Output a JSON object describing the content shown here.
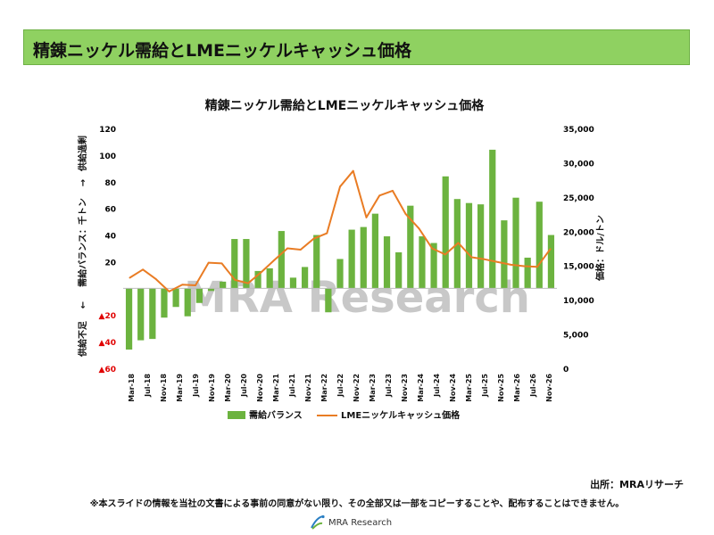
{
  "header": {
    "title": "精錬ニッケル需給とLMEニッケルキャッシュ価格"
  },
  "chart_data": {
    "type": "bar+line",
    "title": "精錬ニッケル需給とLMEニッケルキャッシュ価格",
    "y_left": {
      "range": [
        -60,
        120
      ],
      "ticks": [
        {
          "value": 120,
          "label": "120",
          "color": "#000000"
        },
        {
          "value": 100,
          "label": "100",
          "color": "#000000"
        },
        {
          "value": 80,
          "label": "80",
          "color": "#000000"
        },
        {
          "value": 60,
          "label": "60",
          "color": "#000000"
        },
        {
          "value": 40,
          "label": "40",
          "color": "#000000"
        },
        {
          "value": 20,
          "label": "20",
          "color": "#000000"
        },
        {
          "value": -20,
          "label": "▲20",
          "color": "#e00000"
        },
        {
          "value": -40,
          "label": "▲40",
          "color": "#e00000"
        },
        {
          "value": -60,
          "label": "▲60",
          "color": "#e00000"
        }
      ],
      "label_top": "供給過剰",
      "label_mid": "需給バランス：千トン",
      "label_bottom": "供給不足",
      "arrow_up": "→",
      "arrow_down": "←"
    },
    "y_right": {
      "range": [
        0,
        35000
      ],
      "ticks": [
        {
          "value": 35000,
          "label": "35,000"
        },
        {
          "value": 30000,
          "label": "30,000"
        },
        {
          "value": 25000,
          "label": "25,000"
        },
        {
          "value": 20000,
          "label": "20,000"
        },
        {
          "value": 15000,
          "label": "15,000"
        },
        {
          "value": 10000,
          "label": "10,000"
        },
        {
          "value": 5000,
          "label": "5,000"
        },
        {
          "value": 0,
          "label": "0"
        }
      ],
      "label": "価格：ドル/トン"
    },
    "x_labels": [
      "Mar-18",
      "Jul-18",
      "Nov-18",
      "Mar-19",
      "Jul-19",
      "Nov-19",
      "Mar-20",
      "Jul-20",
      "Nov-20",
      "Mar-21",
      "Jul-21",
      "Nov-21",
      "Mar-22",
      "Jul-22",
      "Nov-22",
      "Mar-23",
      "Jul-23",
      "Nov-23",
      "Mar-24",
      "Jul-24",
      "Nov-24",
      "Mar-25",
      "Jul-25",
      "Nov-25",
      "Mar-26",
      "Jul-26",
      "Nov-26"
    ],
    "series": [
      {
        "name": "需給バランス",
        "type": "bar",
        "color": "#6cb33f",
        "values": [
          -46,
          -39,
          -38,
          -22,
          -14,
          -21,
          -11,
          -2,
          5,
          37,
          37,
          13,
          15,
          43,
          8,
          16,
          40,
          -18,
          22,
          44,
          46,
          56,
          39,
          27,
          62,
          39,
          34,
          84,
          67,
          64,
          63,
          104,
          51,
          68,
          23,
          65,
          40
        ]
      },
      {
        "name": "LMEニッケルキャッシュ価格",
        "type": "line",
        "color": "#e97c24",
        "values": [
          13200,
          14400,
          13000,
          11200,
          12200,
          12100,
          15400,
          15300,
          12900,
          12400,
          14000,
          15800,
          17500,
          17300,
          18900,
          19700,
          26500,
          28800,
          22000,
          25200,
          25900,
          22500,
          20400,
          17500,
          16600,
          18300,
          16200,
          15900,
          15500,
          15100,
          14900,
          14800,
          17400
        ]
      }
    ],
    "legend": [
      "需給バランス",
      "LMEニッケルキャッシュ価格"
    ],
    "watermark": "MRA Research"
  },
  "footer": {
    "source": "出所：MRAリサーチ",
    "disclaimer": "※本スライドの情報を当社の文書による事前の同意がない限り、その全部又は一部をコピーすることや、配布することはできません。",
    "logo_text": "MRA Research"
  }
}
